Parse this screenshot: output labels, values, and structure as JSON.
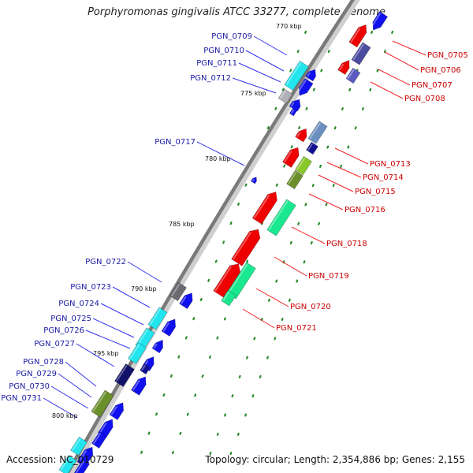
{
  "title": "Porphyromonas gingivalis ATCC 33277, complete genome",
  "footer": {
    "accession": "Accession: NC_010729",
    "topology": "Topology: circular; Length: 2,354,886 bp; Genes: 2,155"
  },
  "colors": {
    "backbone": "#7a7a7a",
    "tick_dots": "#2a8a2a",
    "label_blue": "#1a1aa6",
    "label_red": "#cc0000",
    "leader_blue": "#3333ee",
    "leader_red": "#ee2222"
  },
  "ticks": [
    "770 kbp",
    "775 kbp",
    "780 kbp",
    "785 kbp",
    "790 kbp",
    "795 kbp",
    "800 kbp"
  ],
  "genes_left": [
    "PGN_0709",
    "PGN_0710",
    "PGN_0711",
    "PGN_0712",
    "PGN_0717",
    "PGN_0722",
    "PGN_0723",
    "PGN_0724",
    "PGN_0725",
    "PGN_0726",
    "PGN_0727",
    "PGN_0728",
    "PGN_0729",
    "PGN_0730",
    "PGN_0731"
  ],
  "genes_right": [
    "PGN_0705",
    "PGN_0706",
    "PGN_0707",
    "PGN_0708",
    "PGN_0713",
    "PGN_0714",
    "PGN_0715",
    "PGN_0716",
    "PGN_0718",
    "PGN_0719",
    "PGN_0720",
    "PGN_0721"
  ]
}
